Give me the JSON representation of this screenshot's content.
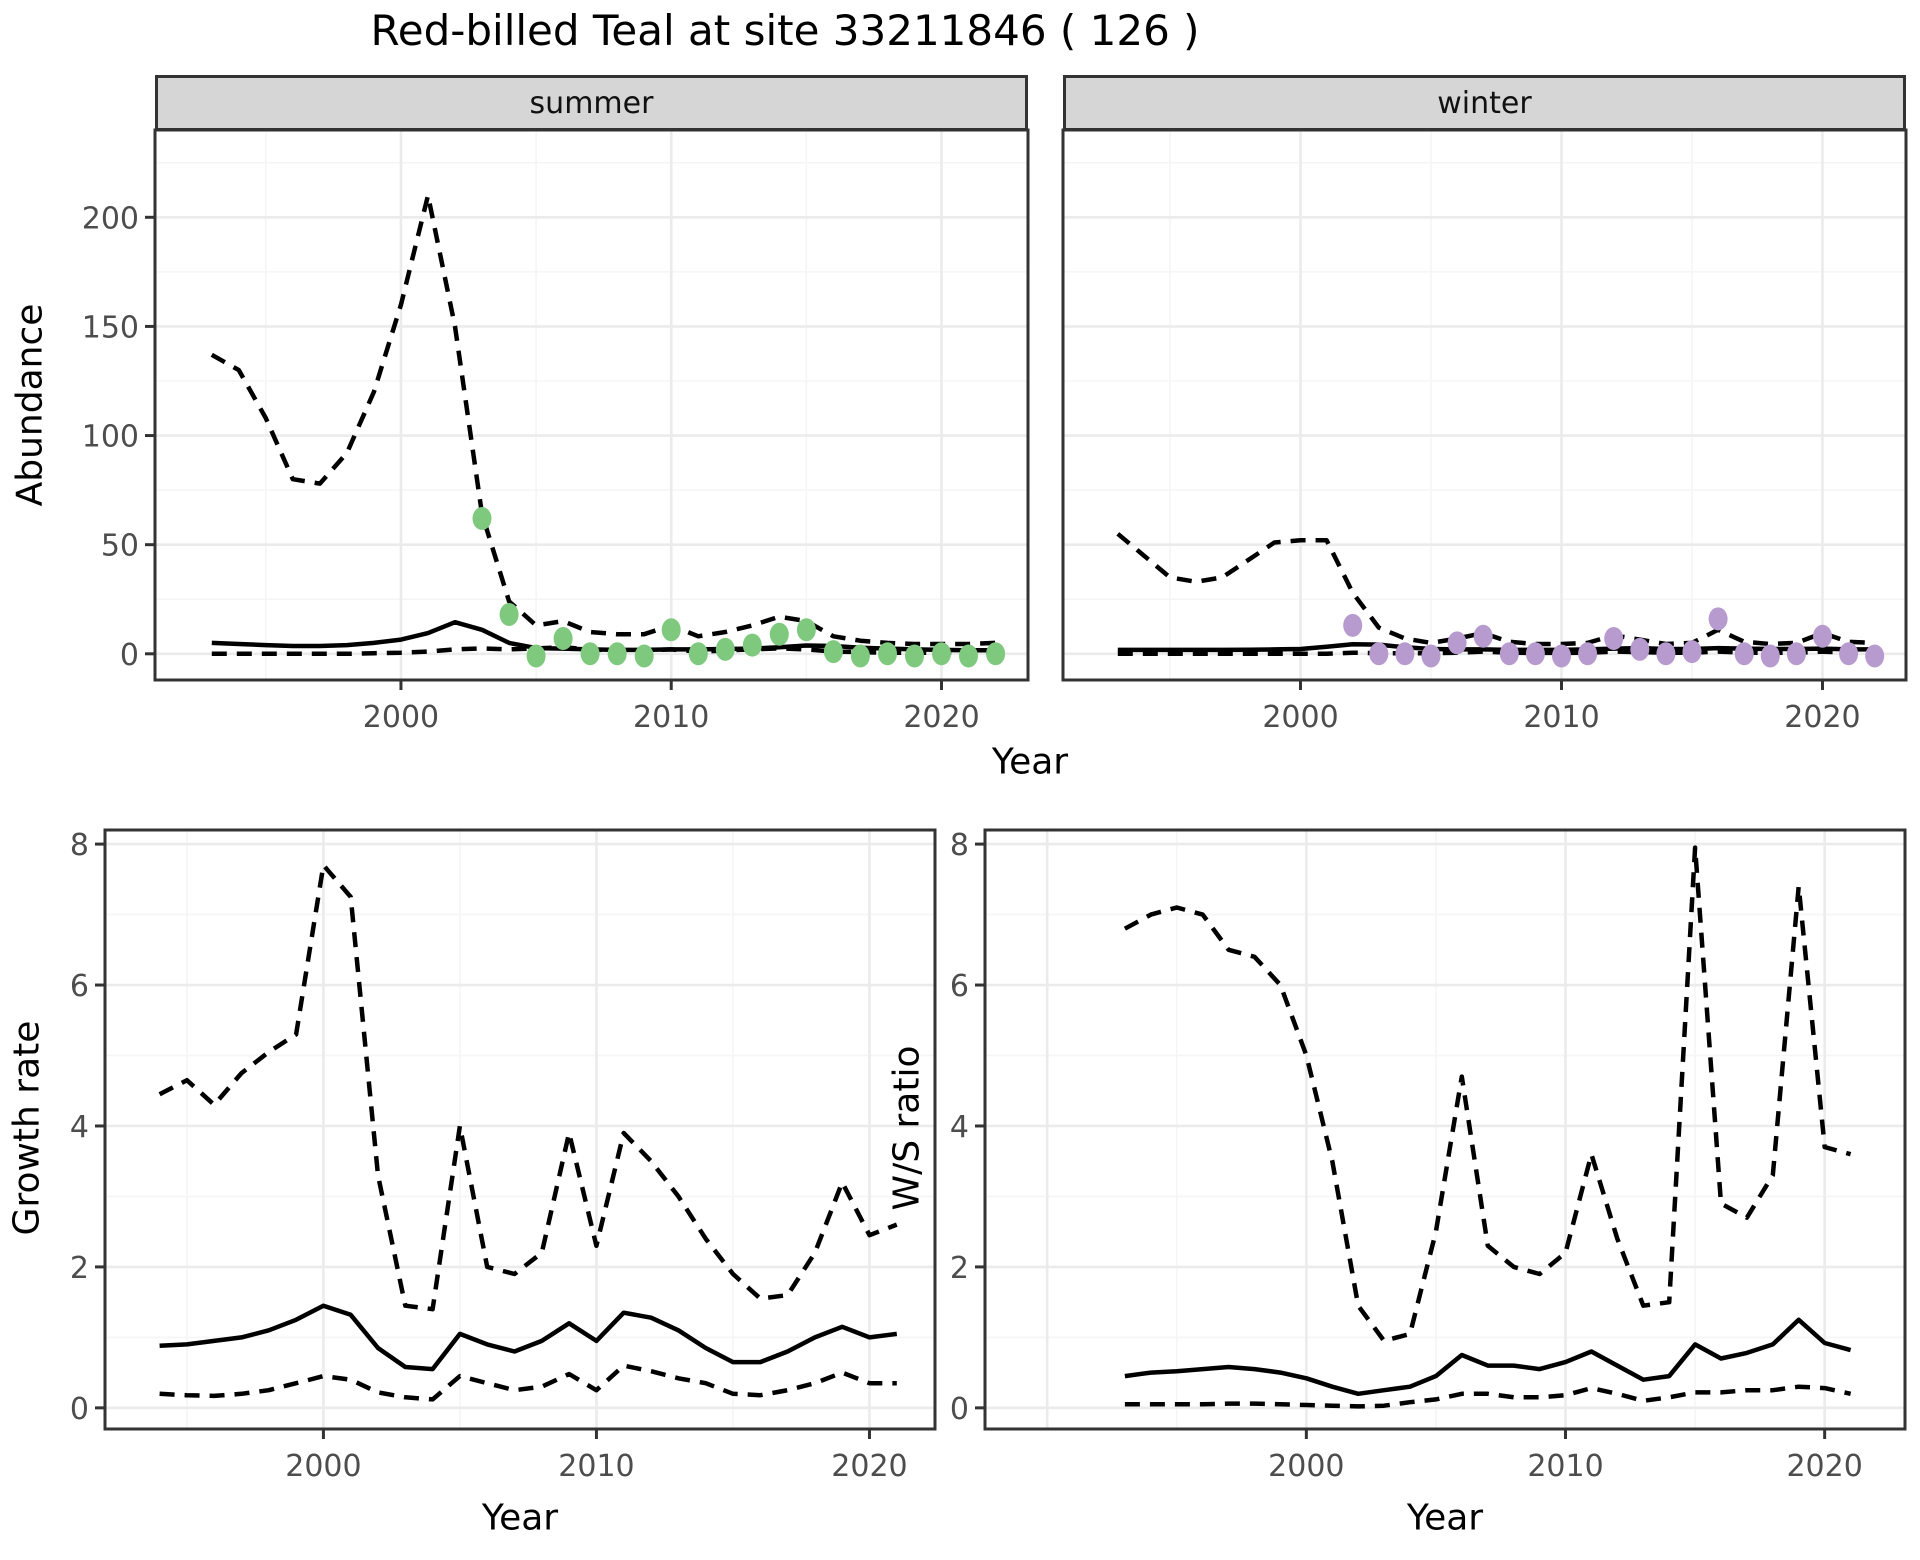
{
  "title": "Red-billed Teal at site 33211846 ( 126 )",
  "facets": {
    "summer": "summer",
    "winter": "winter"
  },
  "axis_titles": {
    "abundance": "Abundance",
    "growth_rate": "Growth rate",
    "ws_ratio": "W/S ratio",
    "year_top": "Year",
    "year_bottom_left": "Year",
    "year_bottom_right": "Year"
  },
  "colors": {
    "summer_points": "#7fc97f",
    "winter_points": "#b79bce",
    "line": "#000000",
    "grid_major": "#ebebeb",
    "grid_minor": "#f5f5f5",
    "strip_fill": "#d6d6d6",
    "panel_border": "#333333",
    "tick_text": "#4d4d4d"
  },
  "chart_data": [
    {
      "id": "abundance_summer",
      "type": "line",
      "facet": "summer",
      "ylabel": "Abundance",
      "xlabel": "Year",
      "xlim": [
        1990.9,
        2023.2
      ],
      "ylim": [
        -12,
        240
      ],
      "xticks": [
        2000,
        2010,
        2020
      ],
      "xtick_labels": [
        "2000",
        "2010",
        "2020"
      ],
      "yticks": [
        0,
        50,
        100,
        150,
        200
      ],
      "ytick_labels": [
        "0",
        "50",
        "100",
        "150",
        "200"
      ],
      "x_grid_major": [
        2000,
        2010,
        2020
      ],
      "x_grid_minor": [
        1995,
        2005,
        2015
      ],
      "y_grid_major": [
        0,
        50,
        100,
        150,
        200
      ],
      "y_grid_minor": [
        25,
        75,
        125,
        175,
        225
      ],
      "show_x_axis": true,
      "show_y_axis": true,
      "x": [
        1993,
        1994,
        1995,
        1996,
        1997,
        1998,
        1999,
        2000,
        2001,
        2002,
        2003,
        2004,
        2005,
        2006,
        2007,
        2008,
        2009,
        2010,
        2011,
        2012,
        2013,
        2014,
        2015,
        2016,
        2017,
        2018,
        2019,
        2020,
        2021,
        2022
      ],
      "series": [
        {
          "name": "upper_ci",
          "style": "dashed",
          "y": [
            137,
            130,
            108,
            80,
            78,
            92,
            120,
            160,
            210,
            150,
            64,
            24,
            13,
            15,
            10,
            9,
            9,
            13,
            8,
            10,
            13,
            17,
            15,
            8,
            6,
            5,
            4.5,
            4.5,
            4.5,
            5
          ]
        },
        {
          "name": "median",
          "style": "solid",
          "y": [
            5,
            4.5,
            4,
            3.6,
            3.6,
            4,
            5,
            6.5,
            9.5,
            14.5,
            11,
            5,
            2.6,
            2.4,
            2,
            1.8,
            1.8,
            2,
            2,
            2.2,
            2.4,
            3,
            3.8,
            3.6,
            2.8,
            2.4,
            2,
            1.8,
            1.6,
            1.6
          ]
        },
        {
          "name": "lower_ci",
          "style": "dashed",
          "y": [
            0,
            0,
            0,
            0,
            0,
            0,
            0.3,
            0.5,
            1,
            2,
            2.5,
            2,
            2.5,
            3,
            2,
            1.5,
            1.5,
            2,
            1,
            1.5,
            2,
            2.5,
            2,
            1,
            0.8,
            0.5,
            0.5,
            0.5,
            0.5,
            0.5
          ]
        }
      ],
      "points": {
        "color": "#7fc97f",
        "x": [
          2003,
          2004,
          2005,
          2006,
          2007,
          2008,
          2009,
          2010,
          2011,
          2012,
          2013,
          2014,
          2015,
          2016,
          2017,
          2018,
          2019,
          2020,
          2021,
          2022
        ],
        "y": [
          62,
          18,
          -1,
          7,
          0,
          0,
          -1,
          11,
          0,
          2,
          4,
          9,
          11,
          1,
          -1,
          0,
          -1,
          0,
          -1,
          0
        ]
      }
    },
    {
      "id": "abundance_winter",
      "type": "line",
      "facet": "winter",
      "ylabel": "Abundance",
      "xlabel": "Year",
      "xlim": [
        1990.9,
        2023.2
      ],
      "ylim": [
        -12,
        240
      ],
      "xticks": [
        2000,
        2010,
        2020
      ],
      "xtick_labels": [
        "2000",
        "2010",
        "2020"
      ],
      "yticks": [
        0,
        50,
        100,
        150,
        200
      ],
      "ytick_labels": [
        "0",
        "50",
        "100",
        "150",
        "200"
      ],
      "x_grid_major": [
        2000,
        2010,
        2020
      ],
      "x_grid_minor": [
        1995,
        2005,
        2015
      ],
      "y_grid_major": [
        0,
        50,
        100,
        150,
        200
      ],
      "y_grid_minor": [
        25,
        75,
        125,
        175,
        225
      ],
      "show_x_axis": true,
      "show_y_axis": false,
      "x": [
        1993,
        1994,
        1995,
        1996,
        1997,
        1998,
        1999,
        2000,
        2001,
        2002,
        2003,
        2004,
        2005,
        2006,
        2007,
        2008,
        2009,
        2010,
        2011,
        2012,
        2013,
        2014,
        2015,
        2016,
        2017,
        2018,
        2019,
        2020,
        2021,
        2022
      ],
      "series": [
        {
          "name": "upper_ci",
          "style": "dashed",
          "y": [
            55,
            45,
            35,
            33,
            35,
            43,
            51,
            52,
            52,
            28,
            12,
            7,
            5,
            7,
            9.5,
            5.5,
            4.5,
            4.5,
            5,
            8.5,
            6.5,
            4.5,
            5,
            11,
            5.5,
            4.5,
            5,
            9.5,
            5.5,
            5
          ]
        },
        {
          "name": "median",
          "style": "solid",
          "y": [
            1.8,
            1.8,
            1.8,
            1.8,
            1.8,
            1.9,
            2,
            2.2,
            3.2,
            4.4,
            4.2,
            3,
            2.2,
            2,
            2,
            1.8,
            1.8,
            1.8,
            2,
            2.4,
            2.6,
            2.2,
            2.2,
            2.6,
            2.4,
            2.2,
            2.2,
            2.4,
            2,
            2
          ]
        },
        {
          "name": "lower_ci",
          "style": "dashed",
          "y": [
            0,
            0,
            0,
            0,
            0,
            0,
            0,
            0,
            0,
            0.5,
            0.3,
            0.3,
            0.3,
            0.5,
            1,
            0.5,
            0.4,
            0.4,
            0.5,
            1,
            0.8,
            0.5,
            0.5,
            1,
            0.6,
            0.4,
            0.5,
            1,
            0.5,
            0.4
          ]
        }
      ],
      "points": {
        "color": "#b79bce",
        "x": [
          2002,
          2003,
          2004,
          2005,
          2006,
          2007,
          2008,
          2009,
          2010,
          2011,
          2012,
          2013,
          2014,
          2015,
          2016,
          2017,
          2018,
          2019,
          2020,
          2021,
          2022
        ],
        "y": [
          13,
          0,
          0,
          -1,
          5,
          8,
          0,
          0,
          -1,
          0,
          7,
          2,
          0,
          1,
          16,
          0,
          -1,
          0,
          8,
          0,
          -1
        ]
      }
    },
    {
      "id": "growth_rate",
      "type": "line",
      "ylabel": "Growth rate",
      "xlabel": "Year",
      "xlim": [
        1992.0,
        2022.4
      ],
      "ylim": [
        -0.3,
        8.2
      ],
      "xticks": [
        2000,
        2010,
        2020
      ],
      "xtick_labels": [
        "2000",
        "2010",
        "2020"
      ],
      "yticks": [
        0,
        2,
        4,
        6,
        8
      ],
      "ytick_labels": [
        "0",
        "2",
        "4",
        "6",
        "8"
      ],
      "x_grid_major": [
        2000,
        2010,
        2020
      ],
      "x_grid_minor": [
        1995,
        2005,
        2015
      ],
      "y_grid_major": [
        0,
        2,
        4,
        6,
        8
      ],
      "y_grid_minor": [
        1,
        3,
        5,
        7
      ],
      "show_x_axis": true,
      "show_y_axis": true,
      "x": [
        1994,
        1995,
        1996,
        1997,
        1998,
        1999,
        2000,
        2001,
        2002,
        2003,
        2004,
        2005,
        2006,
        2007,
        2008,
        2009,
        2010,
        2011,
        2012,
        2013,
        2014,
        2015,
        2016,
        2017,
        2018,
        2019,
        2020,
        2021
      ],
      "series": [
        {
          "name": "upper_ci",
          "style": "dashed",
          "y": [
            4.45,
            4.65,
            4.3,
            4.75,
            5.05,
            5.3,
            7.7,
            7.25,
            3.3,
            1.45,
            1.4,
            4,
            2,
            1.9,
            2.2,
            3.9,
            2.3,
            3.9,
            3.5,
            3,
            2.4,
            1.9,
            1.55,
            1.6,
            2.2,
            3.2,
            2.45,
            2.6
          ]
        },
        {
          "name": "median",
          "style": "solid",
          "y": [
            0.88,
            0.9,
            0.95,
            1,
            1.1,
            1.25,
            1.45,
            1.32,
            0.85,
            0.58,
            0.55,
            1.05,
            0.9,
            0.8,
            0.95,
            1.2,
            0.95,
            1.35,
            1.28,
            1.1,
            0.85,
            0.65,
            0.65,
            0.8,
            1,
            1.15,
            1,
            1.05
          ]
        },
        {
          "name": "lower_ci",
          "style": "dashed",
          "y": [
            0.2,
            0.18,
            0.17,
            0.2,
            0.25,
            0.35,
            0.45,
            0.4,
            0.22,
            0.15,
            0.12,
            0.45,
            0.35,
            0.25,
            0.3,
            0.48,
            0.25,
            0.6,
            0.52,
            0.42,
            0.35,
            0.2,
            0.18,
            0.25,
            0.35,
            0.5,
            0.35,
            0.35
          ]
        }
      ]
    },
    {
      "id": "ws_ratio",
      "type": "line",
      "ylabel": "W/S ratio",
      "xlabel": "Year",
      "xlim": [
        1987.6,
        2023.1
      ],
      "ylim": [
        -0.3,
        8.2
      ],
      "xticks": [
        2000,
        2010,
        2020
      ],
      "xtick_labels": [
        "2000",
        "2010",
        "2020"
      ],
      "yticks": [
        0,
        2,
        4,
        6,
        8
      ],
      "ytick_labels": [
        "0",
        "2",
        "4",
        "6",
        "8"
      ],
      "x_grid_major": [
        1990,
        2000,
        2010,
        2020
      ],
      "x_grid_minor": [
        1995,
        2005,
        2015
      ],
      "y_grid_major": [
        0,
        2,
        4,
        6,
        8
      ],
      "y_grid_minor": [
        1,
        3,
        5,
        7
      ],
      "show_x_axis": true,
      "show_y_axis": true,
      "x": [
        1993,
        1994,
        1995,
        1996,
        1997,
        1998,
        1999,
        2000,
        2001,
        2002,
        2003,
        2004,
        2005,
        2006,
        2007,
        2008,
        2009,
        2010,
        2011,
        2012,
        2013,
        2014,
        2015,
        2016,
        2017,
        2018,
        2019,
        2020,
        2021
      ],
      "series": [
        {
          "name": "upper_ci",
          "style": "dashed",
          "y": [
            6.8,
            7,
            7.1,
            7,
            6.5,
            6.4,
            6,
            5,
            3.5,
            1.45,
            0.95,
            1.05,
            2.5,
            4.7,
            2.3,
            2,
            1.9,
            2.2,
            3.6,
            2.4,
            1.45,
            1.5,
            7.95,
            2.9,
            2.7,
            3.3,
            7.4,
            3.7,
            3.6
          ]
        },
        {
          "name": "median",
          "style": "solid",
          "y": [
            0.45,
            0.5,
            0.52,
            0.55,
            0.58,
            0.55,
            0.5,
            0.42,
            0.3,
            0.2,
            0.25,
            0.3,
            0.45,
            0.75,
            0.6,
            0.6,
            0.55,
            0.65,
            0.8,
            0.6,
            0.4,
            0.45,
            0.9,
            0.7,
            0.78,
            0.9,
            1.25,
            0.92,
            0.82
          ]
        },
        {
          "name": "lower_ci",
          "style": "dashed",
          "y": [
            0.05,
            0.05,
            0.05,
            0.05,
            0.06,
            0.06,
            0.05,
            0.04,
            0.03,
            0.02,
            0.03,
            0.08,
            0.12,
            0.2,
            0.2,
            0.15,
            0.15,
            0.18,
            0.28,
            0.2,
            0.1,
            0.15,
            0.22,
            0.22,
            0.25,
            0.25,
            0.3,
            0.28,
            0.2
          ]
        }
      ]
    }
  ]
}
